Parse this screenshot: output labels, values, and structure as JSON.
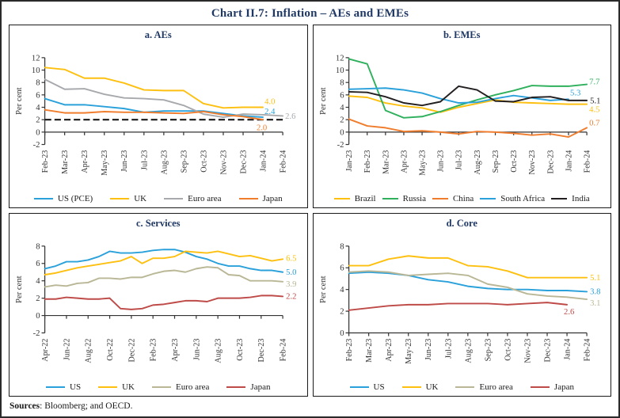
{
  "title": "Chart II.7: Inflation – AEs and EMEs",
  "footer": {
    "sources_label": "Sources",
    "sources_text": ": Bloomberg; and OECD."
  },
  "colors": {
    "title_navy": "#1F3864",
    "axis": "#333333",
    "tick_text": "#333333",
    "dashed_target": "#1A1A1A",
    "blue": "#2AA1DA",
    "yellow": "#FDC010",
    "gray": "#A7A9AC",
    "orange": "#F07D2D",
    "green": "#2EB05C",
    "black": "#231F20",
    "tan": "#B9B795",
    "dark_red": "#BE4B48"
  },
  "chart_data": [
    {
      "id": "a",
      "type": "line",
      "title": "a. AEs",
      "ylabel": "Per cent",
      "ylim": [
        -2,
        12
      ],
      "ystep": 2,
      "baseline": 0,
      "dashed_y": 2,
      "label_every": 1,
      "grid": false,
      "legend_position": "bottom",
      "categories": [
        "Feb-23",
        "Mar-23",
        "Apr-23",
        "May-23",
        "Jun-23",
        "Jul-23",
        "Aug-23",
        "Sep-23",
        "Oct-23",
        "Nov-23",
        "Dec-23",
        "Jan-24",
        "Feb-24"
      ],
      "series": [
        {
          "name": "US (PCE)",
          "color": "#2AA1DA",
          "values": [
            5.4,
            4.4,
            4.4,
            4.1,
            3.8,
            3.2,
            3.4,
            3.4,
            3.4,
            3.0,
            2.6,
            2.4,
            null
          ],
          "end_label": "2.4",
          "end_dx": 2,
          "end_dy": -4
        },
        {
          "name": "UK",
          "color": "#FDC010",
          "values": [
            10.4,
            10.1,
            8.7,
            8.7,
            7.9,
            6.8,
            6.7,
            6.7,
            4.6,
            3.9,
            4.0,
            4.0,
            null
          ],
          "end_label": "4.0",
          "end_dx": 2,
          "end_dy": -4
        },
        {
          "name": "Euro area",
          "color": "#A7A9AC",
          "values": [
            8.5,
            6.9,
            7.0,
            6.1,
            5.5,
            5.4,
            5.2,
            4.3,
            2.9,
            2.4,
            2.9,
            2.8,
            2.6
          ],
          "end_label": "2.6",
          "end_dx": 3,
          "end_dy": 3.5
        },
        {
          "name": "Japan",
          "color": "#F07D2D",
          "values": [
            3.6,
            3.1,
            3.1,
            3.3,
            3.2,
            3.2,
            3.1,
            3.0,
            3.3,
            2.8,
            2.5,
            2.0,
            null
          ],
          "end_label": "2.0",
          "end_dx": -8,
          "end_dy": 13
        }
      ]
    },
    {
      "id": "b",
      "type": "line",
      "title": "b. EMEs",
      "ylabel": "Per cent",
      "ylim": [
        -2,
        12
      ],
      "ystep": 2,
      "baseline": 0,
      "dashed_y": null,
      "label_every": 1,
      "grid": false,
      "legend_position": "bottom",
      "categories": [
        "Jan-23",
        "Feb-23",
        "Mar-23",
        "Apr-23",
        "May-23",
        "Jun-23",
        "Jul-23",
        "Aug-23",
        "Sep-23",
        "Oct-23",
        "Nov-23",
        "Dec-23",
        "Jan-24",
        "Feb-24"
      ],
      "series": [
        {
          "name": "Brazil",
          "color": "#FDC010",
          "values": [
            5.8,
            5.6,
            4.7,
            4.2,
            3.9,
            3.2,
            4.0,
            4.6,
            5.2,
            4.8,
            4.7,
            4.6,
            4.5,
            4.5
          ],
          "end_label": "4.5",
          "end_dx": 3,
          "end_dy": 10
        },
        {
          "name": "Russia",
          "color": "#2EB05C",
          "values": [
            11.8,
            11.0,
            3.5,
            2.3,
            2.5,
            3.3,
            4.3,
            5.2,
            6.0,
            6.7,
            7.5,
            7.4,
            7.4,
            7.7
          ],
          "end_label": "7.7",
          "end_dx": 3,
          "end_dy": 0
        },
        {
          "name": "China",
          "color": "#F07D2D",
          "values": [
            2.1,
            1.0,
            0.7,
            0.1,
            0.2,
            0.0,
            -0.3,
            0.1,
            0.0,
            -0.2,
            -0.5,
            -0.3,
            -0.8,
            0.7
          ],
          "end_label": "0.7",
          "end_dx": 3,
          "end_dy": -3
        },
        {
          "name": "South Africa",
          "color": "#2AA1DA",
          "values": [
            6.9,
            7.0,
            7.1,
            6.8,
            6.3,
            5.4,
            4.7,
            4.8,
            5.4,
            5.9,
            5.5,
            5.1,
            5.3,
            null
          ],
          "end_label": "5.3",
          "end_dx": 2,
          "end_dy": -5
        },
        {
          "name": "India",
          "color": "#231F20",
          "values": [
            6.5,
            6.4,
            5.7,
            4.7,
            4.3,
            4.9,
            7.4,
            6.8,
            5.0,
            4.9,
            5.6,
            5.7,
            5.1,
            5.1
          ],
          "end_label": "5.1",
          "end_dx": 4,
          "end_dy": 3.5
        }
      ]
    },
    {
      "id": "c",
      "type": "line",
      "title": "c. Services",
      "ylabel": "Per cent",
      "ylim": [
        -2,
        8
      ],
      "ystep": 2,
      "baseline": 0,
      "dashed_y": null,
      "label_every": 2,
      "grid": false,
      "legend_position": "bottom",
      "categories": [
        "Apr-22",
        "May-22",
        "Jun-22",
        "Jul-22",
        "Aug-22",
        "Sep-22",
        "Oct-22",
        "Nov-22",
        "Dec-22",
        "Jan-23",
        "Feb-23",
        "Mar-23",
        "Apr-23",
        "May-23",
        "Jun-23",
        "Jul-23",
        "Aug-23",
        "Sep-23",
        "Oct-23",
        "Nov-23",
        "Dec-23",
        "Jan-24",
        "Feb-24"
      ],
      "series": [
        {
          "name": "US",
          "color": "#2AA1DA",
          "values": [
            5.4,
            5.7,
            6.2,
            6.2,
            6.4,
            6.8,
            7.4,
            7.2,
            7.2,
            7.3,
            7.5,
            7.6,
            7.6,
            7.3,
            6.8,
            6.5,
            6.0,
            5.7,
            5.7,
            5.4,
            5.2,
            5.2,
            5.0
          ],
          "end_label": "5.0",
          "end_dx": 4,
          "end_dy": 3.2
        },
        {
          "name": "UK",
          "color": "#FDC010",
          "values": [
            4.7,
            4.9,
            5.2,
            5.5,
            5.7,
            5.9,
            6.1,
            6.3,
            6.8,
            6.0,
            6.6,
            6.6,
            6.8,
            7.4,
            7.3,
            7.2,
            7.4,
            7.1,
            6.8,
            6.9,
            6.6,
            6.3,
            6.5
          ],
          "end_label": "6.5",
          "end_dx": 4,
          "end_dy": 2
        },
        {
          "name": "Euro area",
          "color": "#B9B795",
          "values": [
            3.3,
            3.5,
            3.4,
            3.7,
            3.8,
            4.3,
            4.3,
            4.2,
            4.4,
            4.4,
            4.8,
            5.1,
            5.2,
            5.0,
            5.4,
            5.6,
            5.5,
            4.7,
            4.6,
            4.0,
            4.0,
            4.0,
            3.9
          ],
          "end_label": "3.9",
          "end_dx": 4,
          "end_dy": 6
        },
        {
          "name": "Japan",
          "color": "#BE4B48",
          "values": [
            1.9,
            1.9,
            2.1,
            2.0,
            1.9,
            1.9,
            2.0,
            0.8,
            0.7,
            0.8,
            1.2,
            1.3,
            1.5,
            1.7,
            1.7,
            1.6,
            2.0,
            2.0,
            2.0,
            2.1,
            2.3,
            2.3,
            2.2
          ],
          "end_label": "2.2",
          "end_dx": 4,
          "end_dy": 3.2
        }
      ]
    },
    {
      "id": "d",
      "type": "line",
      "title": "d. Core",
      "ylabel": "Per cent",
      "ylim": [
        0,
        8
      ],
      "ystep": 2,
      "baseline": 0,
      "dashed_y": null,
      "label_every": 1,
      "grid": false,
      "legend_position": "bottom",
      "categories": [
        "Feb-23",
        "Mar-23",
        "Apr-23",
        "May-23",
        "Jun-23",
        "Jul-23",
        "Aug-23",
        "Sep-23",
        "Oct-23",
        "Nov-23",
        "Dec-23",
        "Jan-24",
        "Feb-24"
      ],
      "series": [
        {
          "name": "US",
          "color": "#2AA1DA",
          "values": [
            5.5,
            5.6,
            5.5,
            5.3,
            4.9,
            4.7,
            4.3,
            4.1,
            4.0,
            4.0,
            3.9,
            3.9,
            3.8
          ],
          "end_label": "3.8",
          "end_dx": 4,
          "end_dy": 3.2
        },
        {
          "name": "UK",
          "color": "#FDC010",
          "values": [
            6.2,
            6.2,
            6.8,
            7.1,
            6.9,
            6.9,
            6.2,
            6.1,
            5.7,
            5.1,
            5.1,
            5.1,
            5.1
          ],
          "end_label": "5.1",
          "end_dx": 4,
          "end_dy": 3.2
        },
        {
          "name": "Euro area",
          "color": "#B9B795",
          "values": [
            5.6,
            5.7,
            5.6,
            5.3,
            5.4,
            5.5,
            5.3,
            4.5,
            4.2,
            3.6,
            3.4,
            3.3,
            3.1
          ],
          "end_label": "3.1",
          "end_dx": 4,
          "end_dy": 8
        },
        {
          "name": "Japan",
          "color": "#BE4B48",
          "values": [
            2.1,
            2.3,
            2.5,
            2.6,
            2.6,
            2.7,
            2.7,
            2.7,
            2.6,
            2.7,
            2.8,
            2.6,
            null
          ],
          "end_label": "2.6",
          "end_dx": -4,
          "end_dy": 12
        }
      ]
    }
  ]
}
